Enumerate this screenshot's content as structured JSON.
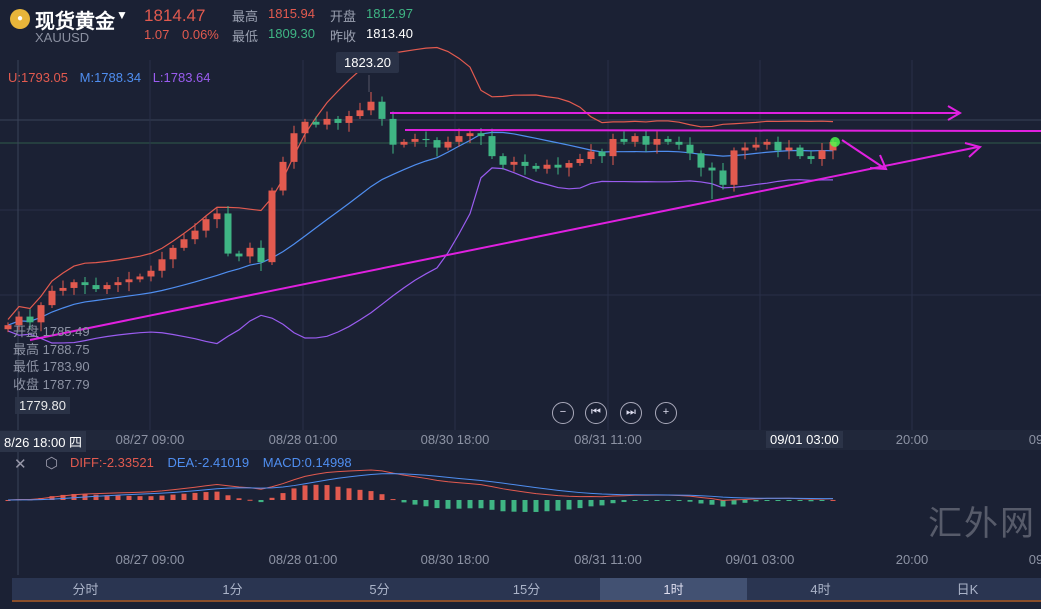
{
  "header": {
    "icon": "gold-coin-icon",
    "title": "现货黄金",
    "symbol": "XAUUSD",
    "price": "1814.47",
    "change": "1.07",
    "change_pct": "0.06%",
    "high_label": "最高",
    "high": "1815.94",
    "open_label": "开盘",
    "open": "1812.97",
    "low_label": "最低",
    "low": "1809.30",
    "prev_label": "昨收",
    "prev_close": "1813.40"
  },
  "bands": {
    "upper": "U:1793.05",
    "middle": "M:1788.34",
    "lower": "L:1783.64"
  },
  "max_tip": "1823.20",
  "crosshair": {
    "open": "开盘 1785.49",
    "high": "最高 1788.75",
    "low": "最低 1783.90",
    "close": "收盘 1787.79",
    "price_tag": "1779.80",
    "time_tag": "8/26 18:00 四"
  },
  "controls": {
    "zoom_out": "−",
    "prev": "⏮",
    "next": "⏭",
    "zoom_in": "+"
  },
  "time_axis": [
    "08/27 09:00",
    "08/28 01:00",
    "08/30 18:00",
    "08/31 11:00",
    "09/01 03:00",
    "20:00",
    "09"
  ],
  "time_axis_selected": "09/01 03:00",
  "macd": {
    "diff": "DIFF:-2.33521",
    "dea": "DEA:-2.41019",
    "macd": "MACD:0.14998"
  },
  "tabs": [
    "分时",
    "1分",
    "5分",
    "15分",
    "1时",
    "4时",
    "日K"
  ],
  "active_tab": "1时",
  "watermark": "汇外网",
  "colors": {
    "up": "#e25a4f",
    "down": "#3fb584",
    "upper": "#e25a4f",
    "middle": "#4f8ef0",
    "lower": "#9a5cf0",
    "trend": "#e020e0"
  },
  "chart_data": {
    "type": "candlestick",
    "title": "XAUUSD 1H",
    "closes": [
      1782.5,
      1784,
      1783,
      1786,
      1788.5,
      1789,
      1790,
      1789.5,
      1788.8,
      1789.5,
      1790,
      1790.5,
      1791,
      1792,
      1794,
      1796,
      1797.5,
      1799,
      1801,
      1802,
      1795,
      1794.5,
      1796,
      1793.5,
      1806,
      1811,
      1816,
      1818,
      1817.5,
      1818.5,
      1817.8,
      1819,
      1820,
      1821.5,
      1818.5,
      1814,
      1814.5,
      1815,
      1814.8,
      1813.5,
      1814.5,
      1815.5,
      1816,
      1815.5,
      1812,
      1810.5,
      1811,
      1810.3,
      1809.8,
      1810.5,
      1810,
      1810.8,
      1811.5,
      1812.8,
      1812,
      1815,
      1814.5,
      1815.5,
      1814,
      1815,
      1814.5,
      1814,
      1812.5,
      1810,
      1809.5,
      1807,
      1813,
      1813.5,
      1814,
      1814.5,
      1813,
      1813.5,
      1812,
      1811.5,
      1813,
      1814.47
    ],
    "first_open": 1781.8,
    "max_high": {
      "index": 33,
      "value": 1823.2
    },
    "min_low": {
      "index": 64,
      "value": 1804.5
    },
    "time_label_index": [
      13,
      27,
      41,
      55,
      71,
      83,
      94
    ]
  }
}
